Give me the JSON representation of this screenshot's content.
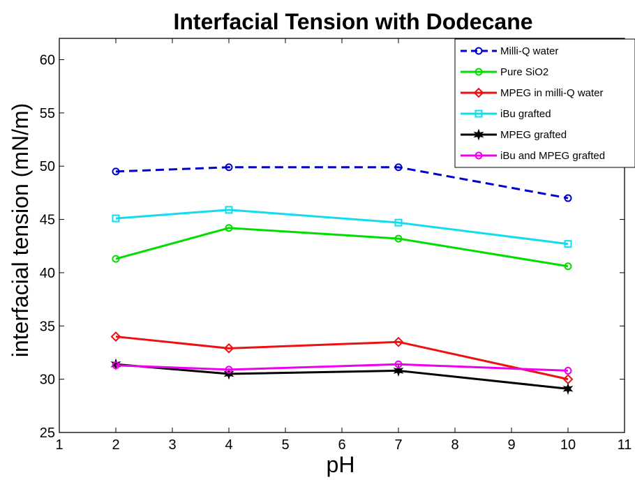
{
  "chart_data": {
    "type": "line",
    "title": "Interfacial Tension with Dodecane",
    "xlabel": "pH",
    "ylabel": "interfacial tension (mN/m)",
    "xlim": [
      1,
      11
    ],
    "ylim": [
      25,
      62
    ],
    "xticks": [
      "1",
      "2",
      "3",
      "4",
      "5",
      "6",
      "7",
      "8",
      "9",
      "10",
      "11"
    ],
    "yticks": [
      "25",
      "30",
      "35",
      "40",
      "45",
      "50",
      "55",
      "60"
    ],
    "x": [
      2,
      4,
      7,
      10
    ],
    "grid": false,
    "legend_position": "top-right",
    "series": [
      {
        "name": "Milli-Q water",
        "values": [
          49.5,
          49.9,
          49.9,
          47.0
        ],
        "color": "#0000cc",
        "dash": "dashed",
        "marker": "circle"
      },
      {
        "name": "Pure SiO2",
        "values": [
          41.3,
          44.2,
          43.2,
          40.6
        ],
        "color": "#00dd00",
        "dash": "solid",
        "marker": "circle"
      },
      {
        "name": "MPEG in milli-Q water",
        "values": [
          34.0,
          32.9,
          33.5,
          30.0
        ],
        "color": "#ee1111",
        "dash": "solid",
        "marker": "diamond"
      },
      {
        "name": "iBu grafted",
        "values": [
          45.1,
          45.9,
          44.7,
          42.7
        ],
        "color": "#11ddee",
        "dash": "solid",
        "marker": "square"
      },
      {
        "name": "MPEG grafted",
        "values": [
          31.4,
          30.5,
          30.8,
          29.1
        ],
        "color": "#000000",
        "dash": "solid",
        "marker": "star"
      },
      {
        "name": "iBu and MPEG grafted",
        "values": [
          31.3,
          30.9,
          31.4,
          30.8
        ],
        "color": "#ee00ee",
        "dash": "solid",
        "marker": "circle"
      }
    ]
  }
}
